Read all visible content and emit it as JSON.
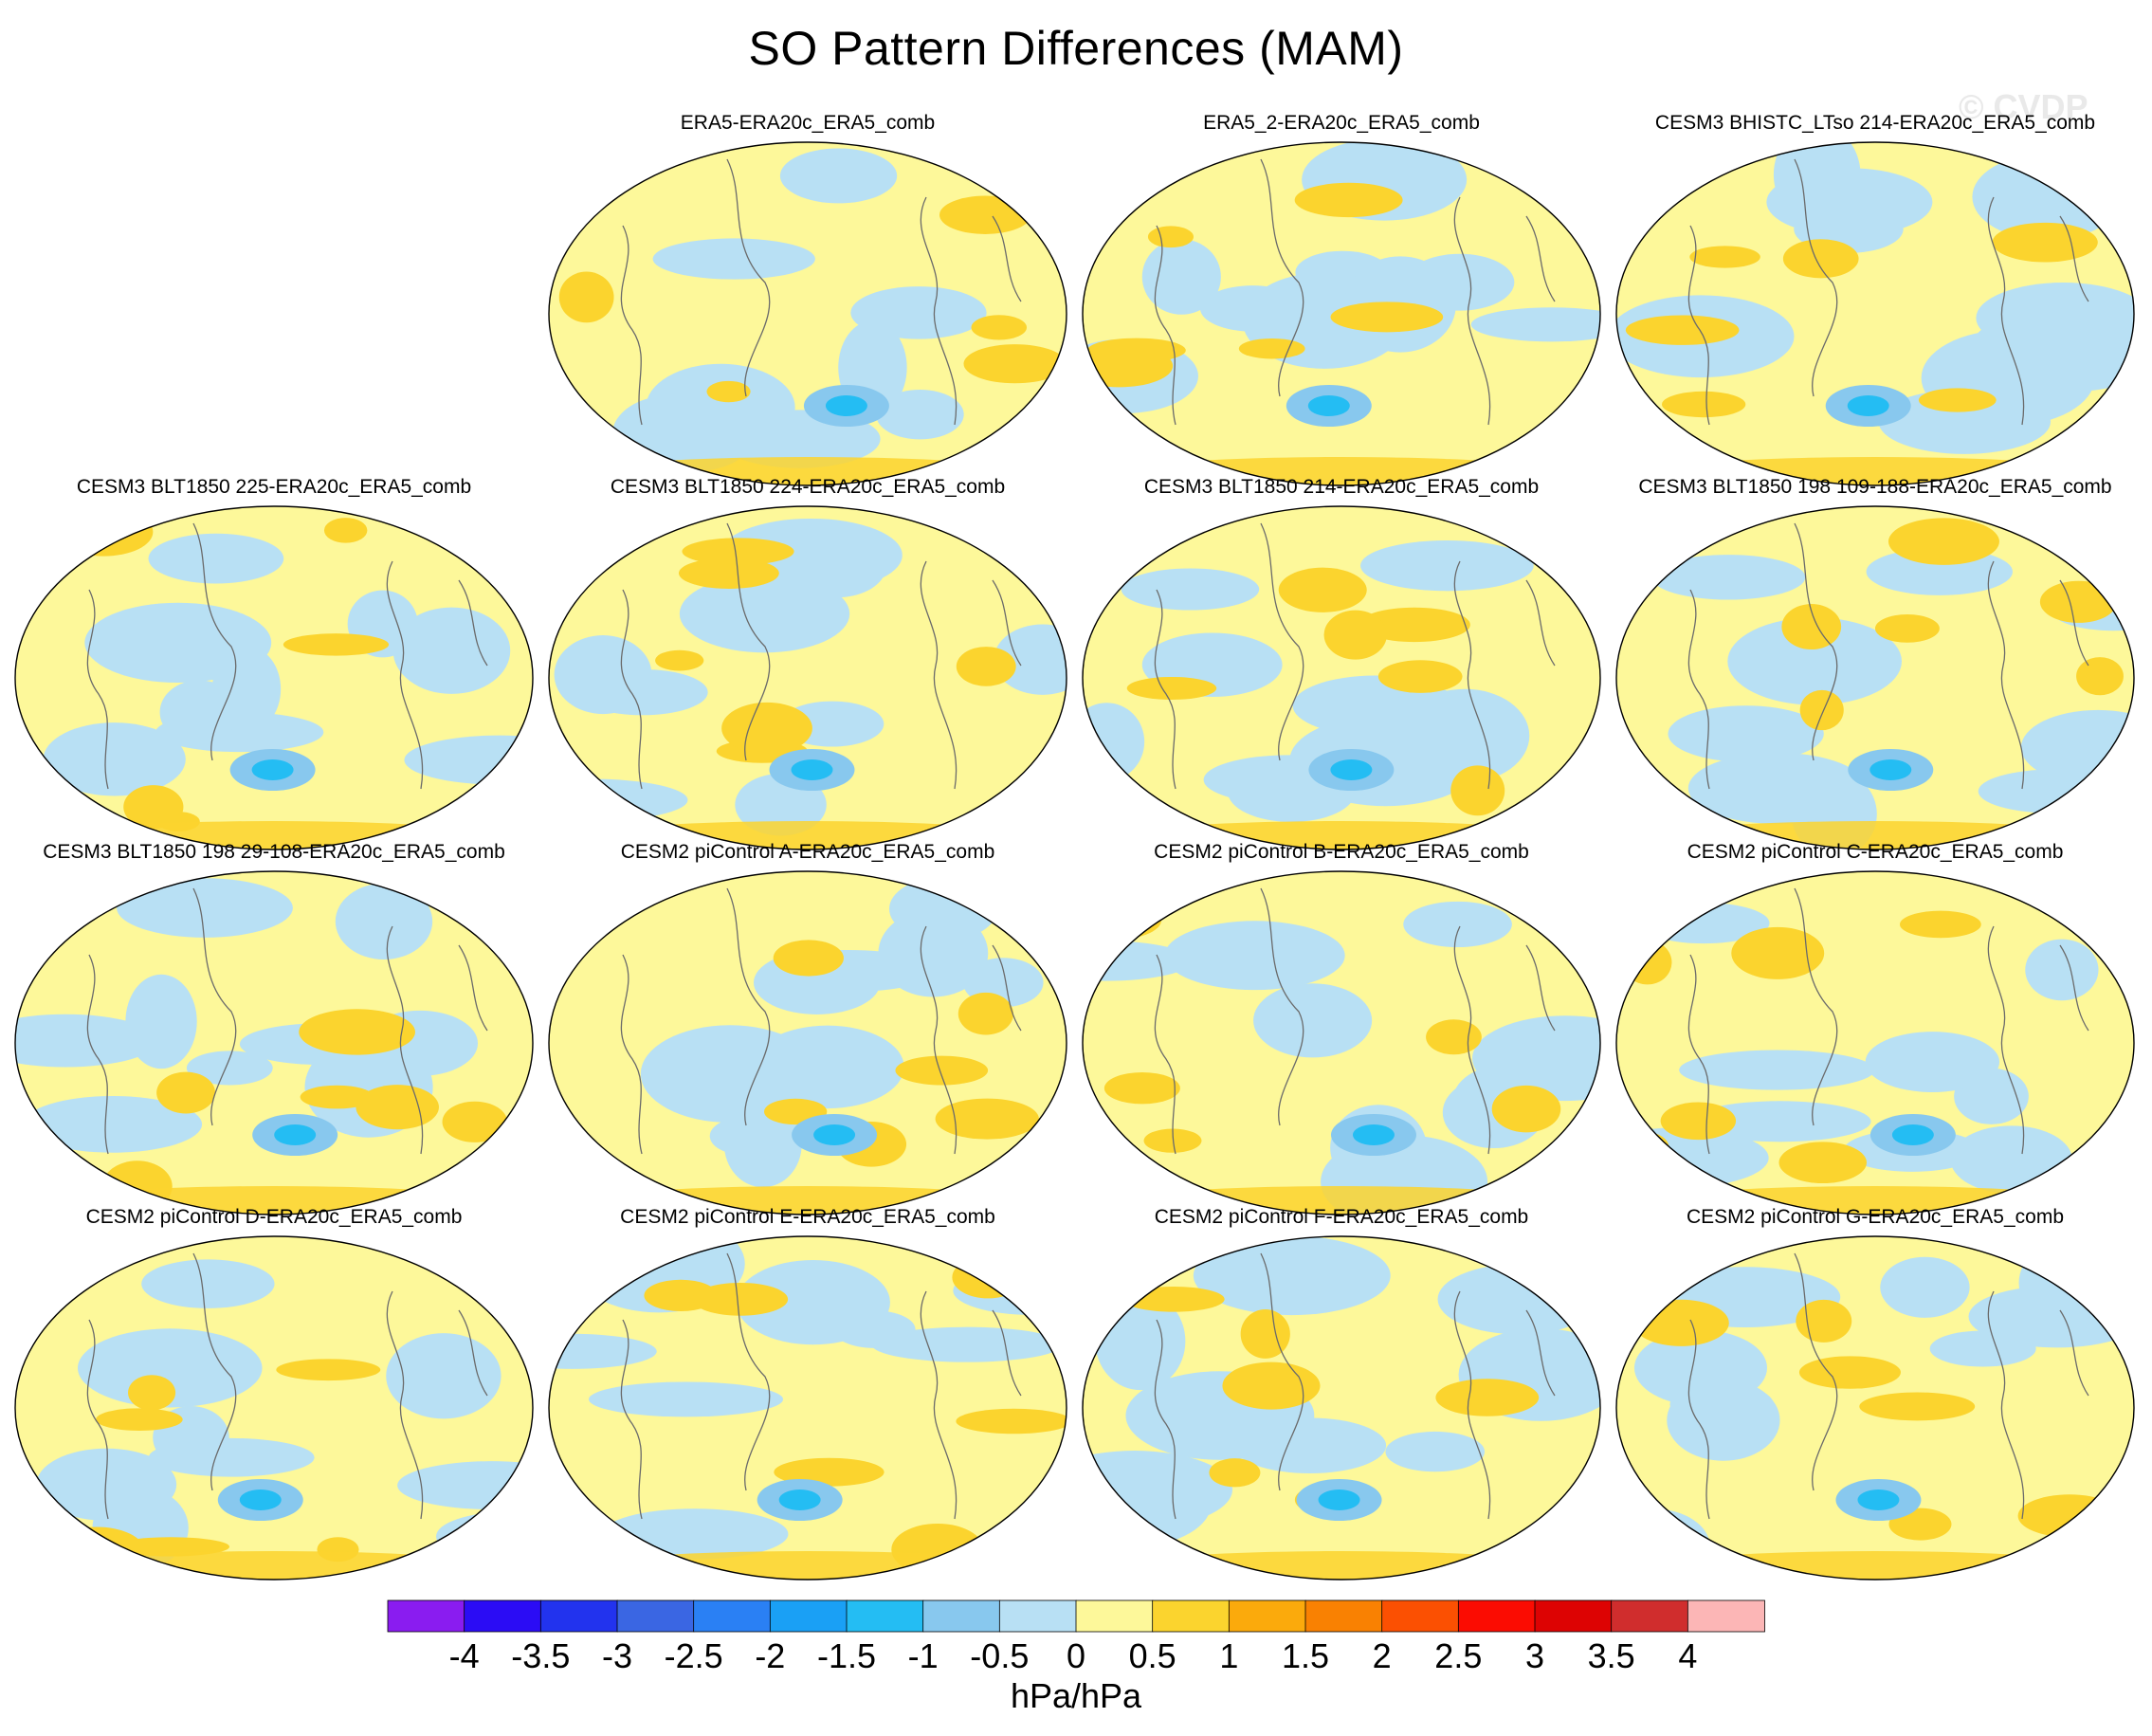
{
  "title": "SO Pattern Differences (MAM)",
  "watermark": "© CVDP",
  "chart_data": {
    "type": "heatmap",
    "title": "SO Pattern Differences (MAM)",
    "projection": "global map (Robinson-like), Pacific-centred",
    "units": "hPa/hPa",
    "panels": [
      "ERA5-ERA20c_ERA5_comb",
      "ERA5_2-ERA20c_ERA5_comb",
      "CESM3 BHISTC_LTso 214-ERA20c_ERA5_comb",
      "CESM3 BLT1850 225-ERA20c_ERA5_comb",
      "CESM3 BLT1850 224-ERA20c_ERA5_comb",
      "CESM3 BLT1850 214-ERA20c_ERA5_comb",
      "CESM3 BLT1850 198 109-188-ERA20c_ERA5_comb",
      "CESM3 BLT1850 198 29-108-ERA20c_ERA5_comb",
      "CESM2 piControl A-ERA20c_ERA5_comb",
      "CESM2 piControl B-ERA20c_ERA5_comb",
      "CESM2 piControl C-ERA20c_ERA5_comb",
      "CESM2 piControl D-ERA20c_ERA5_comb",
      "CESM2 piControl E-ERA20c_ERA5_comb",
      "CESM2 piControl F-ERA20c_ERA5_comb",
      "CESM2 piControl G-ERA20c_ERA5_comb"
    ],
    "colorbar": {
      "labels": [
        "-4",
        "-3.5",
        "-3",
        "-2.5",
        "-2",
        "-1.5",
        "-1",
        "-0.5",
        "0",
        "0.5",
        "1",
        "1.5",
        "2",
        "2.5",
        "3",
        "3.5",
        "4"
      ],
      "colors": [
        "#8a1cf0",
        "#2b0cf5",
        "#2233ee",
        "#3a66e3",
        "#2a80f4",
        "#1aa0f5",
        "#24bdf3",
        "#88c8ee",
        "#b8e0f4",
        "#fdf89a",
        "#fbd42e",
        "#fbaa0c",
        "#f98102",
        "#fb5002",
        "#fb0c02",
        "#dd0303",
        "#d02d2d",
        "#fcb6b6"
      ],
      "label": "hPa/hPa"
    }
  }
}
